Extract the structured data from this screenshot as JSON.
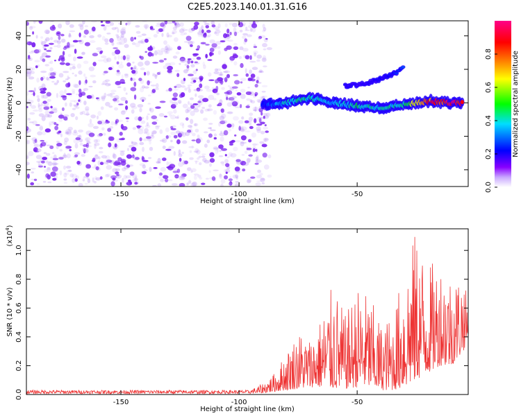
{
  "title": "C2E5.2023.140.01.31.G16",
  "chart_data": [
    {
      "type": "heatmap",
      "title": "C2E5.2023.140.01.31.G16",
      "xlabel": "Height of straight line (km)",
      "ylabel": "Frequency (Hz)",
      "xlim": [
        -190,
        -3
      ],
      "ylim": [
        -50,
        49
      ],
      "xticks": [
        -150,
        -100,
        -50
      ],
      "yticks": [
        -40,
        -20,
        0,
        20,
        40
      ],
      "noise_region_x": [
        -190,
        -90
      ],
      "signal_band": [
        {
          "x": -90,
          "y": -1,
          "amplitude": 0.25
        },
        {
          "x": -80,
          "y": 0,
          "amplitude": 0.4
        },
        {
          "x": -70,
          "y": 3,
          "amplitude": 0.45
        },
        {
          "x": -60,
          "y": 0,
          "amplitude": 0.35
        },
        {
          "x": -50,
          "y": -2,
          "amplitude": 0.45
        },
        {
          "x": -40,
          "y": -3,
          "amplitude": 0.4
        },
        {
          "x": -30,
          "y": -1,
          "amplitude": 0.45
        },
        {
          "x": -20,
          "y": 1,
          "amplitude": 0.8
        },
        {
          "x": -10,
          "y": 0,
          "amplitude": 0.95
        },
        {
          "x": -5,
          "y": 0,
          "amplitude": 0.9
        }
      ],
      "harmonic_band": [
        {
          "x": -55,
          "y": 10,
          "amplitude": 0.2
        },
        {
          "x": -45,
          "y": 12,
          "amplitude": 0.2
        },
        {
          "x": -35,
          "y": 17,
          "amplitude": 0.25
        },
        {
          "x": -30,
          "y": 21,
          "amplitude": 0.3
        }
      ],
      "colorbar": {
        "label": "Normalized spectral amplitude",
        "ticks": [
          0.0,
          0.2,
          0.4,
          0.6,
          0.8
        ],
        "range": [
          0,
          1
        ],
        "colors": [
          "#ffffff",
          "#8800ff",
          "#0000ff",
          "#00ddff",
          "#00ff00",
          "#ffff00",
          "#ff8800",
          "#ff0000",
          "#ff0088"
        ]
      }
    },
    {
      "type": "line",
      "xlabel": "Height of straight line (km)",
      "ylabel": "SNR (10 * v/v)",
      "scale_label": "(x10",
      "scale_exp": "4",
      "xlim": [
        -190,
        -3
      ],
      "ylim": [
        0,
        1.15
      ],
      "xticks": [
        -150,
        -100,
        -50
      ],
      "yticks": [
        0.0,
        0.2,
        0.4,
        0.6,
        0.8,
        1.0
      ],
      "color": "#ee3333",
      "envelope": [
        {
          "x": -190,
          "lo": 0.005,
          "hi": 0.03
        },
        {
          "x": -95,
          "lo": 0.005,
          "hi": 0.03
        },
        {
          "x": -90,
          "lo": 0.01,
          "hi": 0.08
        },
        {
          "x": -85,
          "lo": 0.02,
          "hi": 0.15
        },
        {
          "x": -80,
          "lo": 0.03,
          "hi": 0.3
        },
        {
          "x": -75,
          "lo": 0.04,
          "hi": 0.45
        },
        {
          "x": -70,
          "lo": 0.05,
          "hi": 0.4
        },
        {
          "x": -65,
          "lo": 0.05,
          "hi": 0.55
        },
        {
          "x": -60,
          "lo": 0.04,
          "hi": 0.78
        },
        {
          "x": -55,
          "lo": 0.04,
          "hi": 0.55
        },
        {
          "x": -50,
          "lo": 0.05,
          "hi": 0.75
        },
        {
          "x": -45,
          "lo": 0.05,
          "hi": 0.7
        },
        {
          "x": -40,
          "lo": 0.03,
          "hi": 0.5
        },
        {
          "x": -35,
          "lo": 0.03,
          "hi": 0.55
        },
        {
          "x": -30,
          "lo": 0.05,
          "hi": 0.9
        },
        {
          "x": -25,
          "lo": 0.1,
          "hi": 1.15
        },
        {
          "x": -20,
          "lo": 0.15,
          "hi": 0.9
        },
        {
          "x": -15,
          "lo": 0.2,
          "hi": 0.95
        },
        {
          "x": -10,
          "lo": 0.2,
          "hi": 0.85
        },
        {
          "x": -5,
          "lo": 0.3,
          "hi": 0.85
        },
        {
          "x": -3,
          "lo": 0.4,
          "hi": 0.6
        }
      ]
    }
  ]
}
